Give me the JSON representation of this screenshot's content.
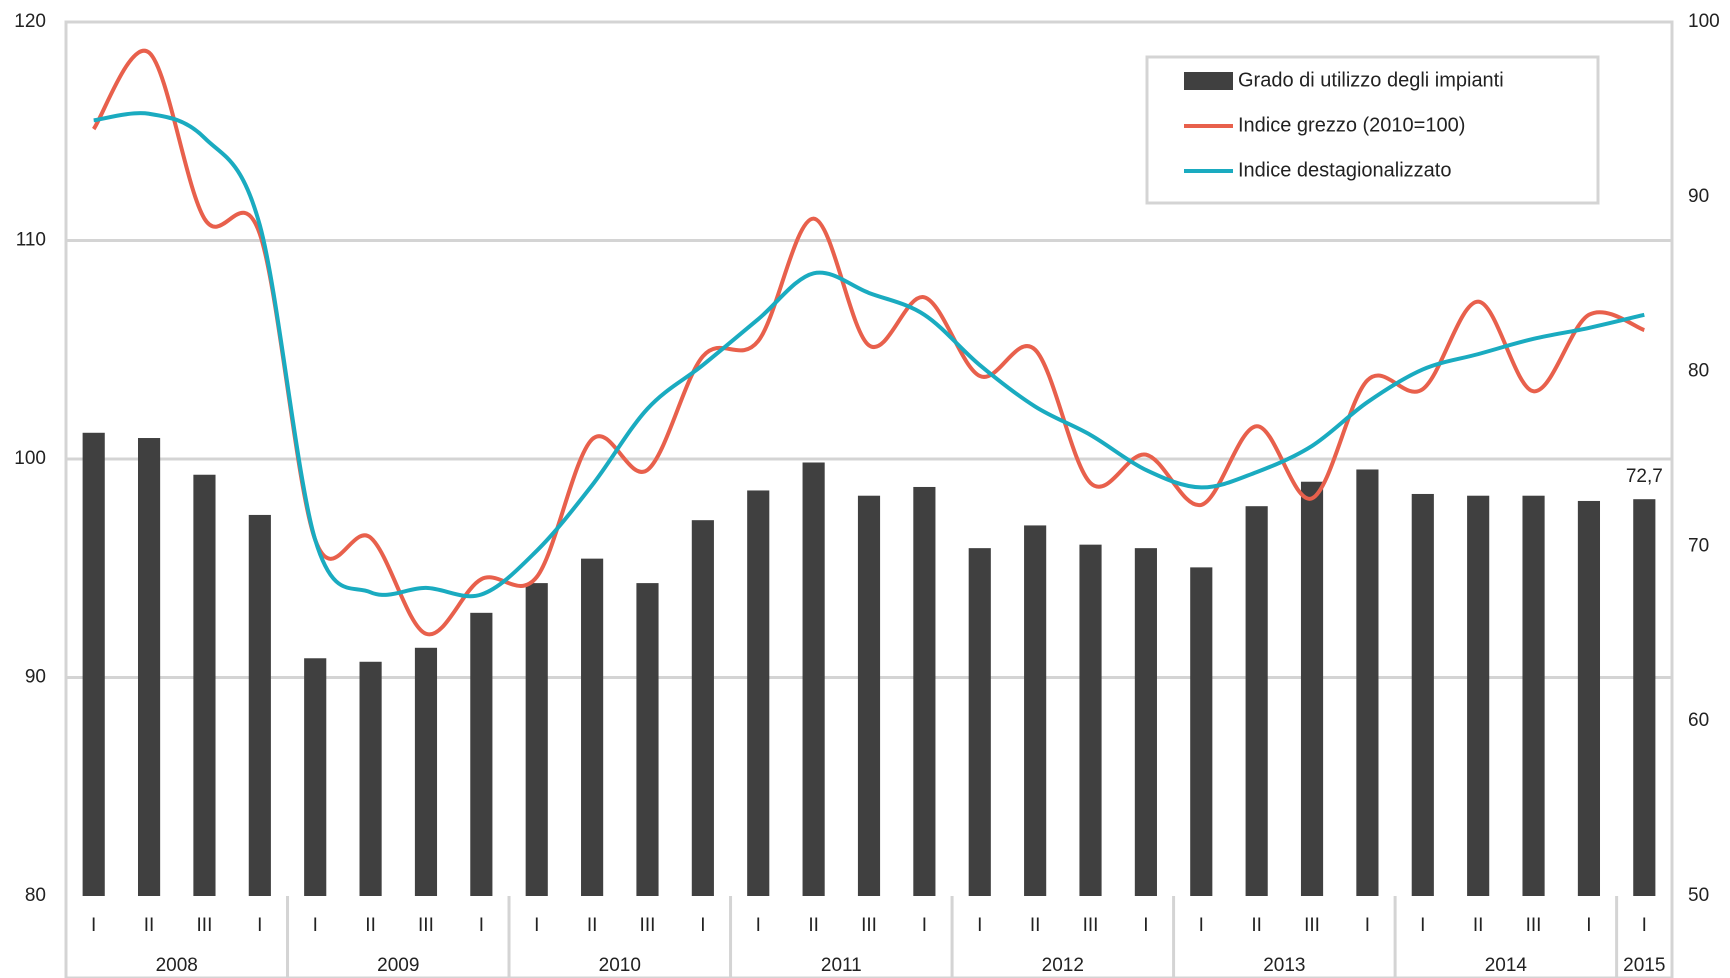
{
  "chart_data": {
    "type": "bar-line",
    "categories": [
      "I",
      "II",
      "III",
      "I",
      "I",
      "II",
      "III",
      "I",
      "I",
      "II",
      "III",
      "I",
      "I",
      "II",
      "III",
      "I",
      "I",
      "II",
      "III",
      "I",
      "I",
      "II",
      "III",
      "I",
      "I",
      "II",
      "III",
      "I",
      "I"
    ],
    "category_years": [
      "2008",
      "2008",
      "2008",
      "2008",
      "2009",
      "2009",
      "2009",
      "2009",
      "2010",
      "2010",
      "2010",
      "2010",
      "2011",
      "2011",
      "2011",
      "2011",
      "2012",
      "2012",
      "2012",
      "2012",
      "2013",
      "2013",
      "2013",
      "2013",
      "2014",
      "2014",
      "2014",
      "2014",
      "2015"
    ],
    "series": [
      {
        "name": "Grado di utilizzo degli impianti",
        "type": "bar",
        "axis": "y2",
        "color": "#404040",
        "values": [
          76.5,
          76.2,
          74.1,
          71.8,
          63.6,
          63.4,
          64.2,
          66.2,
          67.9,
          69.3,
          67.9,
          71.5,
          73.2,
          74.8,
          72.9,
          73.4,
          69.9,
          71.2,
          70.1,
          69.9,
          68.8,
          72.3,
          73.7,
          74.4,
          73.0,
          72.9,
          72.9,
          72.6,
          72.7
        ],
        "value_labels": [
          null,
          null,
          null,
          null,
          null,
          null,
          null,
          null,
          null,
          null,
          null,
          null,
          null,
          null,
          null,
          null,
          null,
          null,
          null,
          null,
          null,
          null,
          null,
          null,
          null,
          null,
          null,
          null,
          "72,7"
        ]
      },
      {
        "name": "Indice grezzo (2010=100)",
        "type": "line",
        "color": "#e8604c",
        "values": [
          115.1,
          118.6,
          111.0,
          110.3,
          96.3,
          96.4,
          92.0,
          94.5,
          94.6,
          100.9,
          99.5,
          104.7,
          105.4,
          111.0,
          105.2,
          107.4,
          103.8,
          105.0,
          98.9,
          100.2,
          97.9,
          101.5,
          98.2,
          103.6,
          103.2,
          107.2,
          103.1,
          106.6,
          105.9
        ]
      },
      {
        "name": "Indice destagionalizzato",
        "type": "line",
        "color": "#1aabc0",
        "values": [
          115.5,
          115.8,
          114.7,
          110.7,
          96.3,
          93.9,
          94.1,
          93.8,
          95.8,
          98.8,
          102.3,
          104.3,
          106.4,
          108.5,
          107.6,
          106.6,
          104.3,
          102.4,
          101.1,
          99.5,
          98.7,
          99.4,
          100.6,
          102.6,
          104.1,
          104.8,
          105.5,
          106.0,
          106.6
        ]
      }
    ],
    "ylim": [
      80,
      120
    ],
    "yticks": [
      80,
      90,
      100,
      110,
      120
    ],
    "y2lim": [
      50,
      100
    ],
    "y2ticks": [
      50,
      60,
      70,
      80,
      90,
      100
    ],
    "grid": true,
    "legend": "top-right"
  }
}
